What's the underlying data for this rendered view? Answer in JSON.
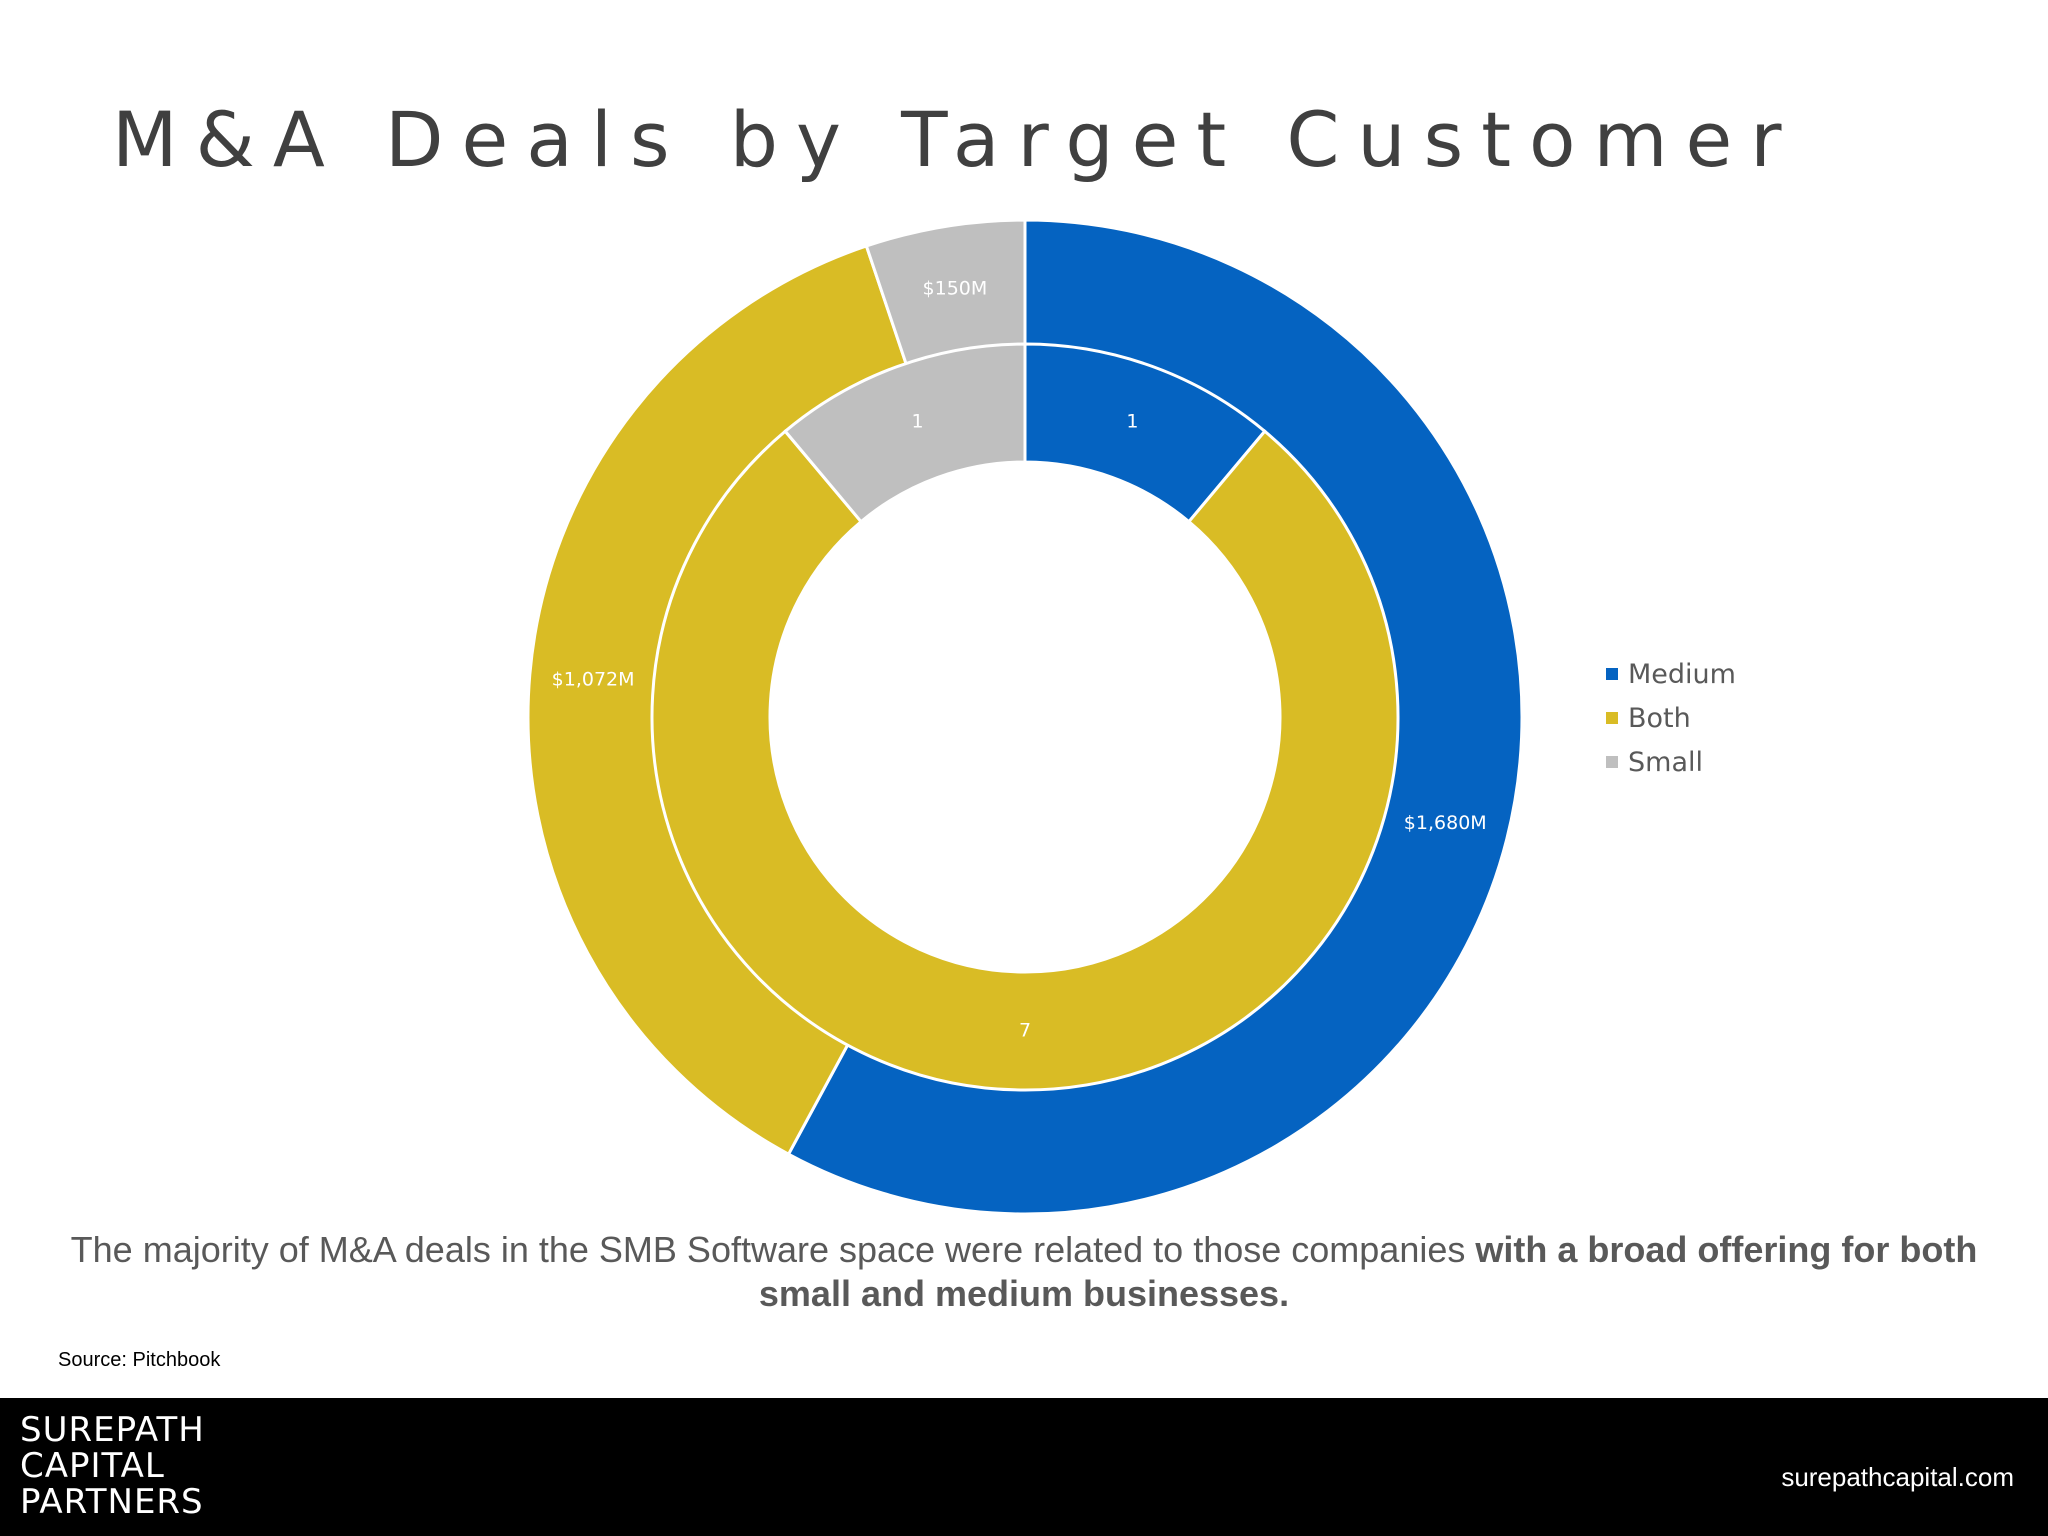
{
  "title": "M&A Deals by Target Customer",
  "legend": [
    {
      "label": "Medium",
      "color": "#0563C1"
    },
    {
      "label": "Both",
      "color": "#D9BC25"
    },
    {
      "label": "Small",
      "color": "#BFBFBF"
    }
  ],
  "chart_data": {
    "type": "doughnut",
    "categories": [
      "Medium",
      "Both",
      "Small"
    ],
    "colors": [
      "#0563C1",
      "#D9BC25",
      "#BFBFBF"
    ],
    "series": [
      {
        "ring": "outer",
        "values": [
          1680,
          1072,
          150
        ],
        "labels": [
          "$1,680M",
          "$1,072M",
          "$150M"
        ]
      },
      {
        "ring": "inner",
        "values": [
          1,
          7,
          1
        ],
        "labels": [
          "1",
          "7",
          "1"
        ]
      }
    ],
    "legend_position": "right"
  },
  "summary": {
    "text": "The majority of M&A deals in the SMB Software space were related to those companies ",
    "bold": "with a broad offering for both small and medium businesses."
  },
  "source": "Source: Pitchbook",
  "footer": {
    "logo": [
      "SUREPATH",
      "CAPITAL",
      "PARTNERS"
    ],
    "website": "surepathcapital.com"
  }
}
